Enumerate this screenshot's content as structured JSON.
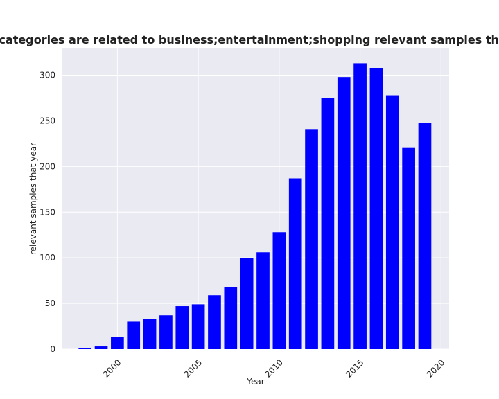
{
  "chart_data": {
    "type": "bar",
    "title": "Number of apps whose categories are related to business;entertainment;shopping relevant samples that year in privacy policies",
    "xlabel": "Year",
    "ylabel": "relevant samples that year",
    "x": [
      1998,
      1999,
      2000,
      2001,
      2002,
      2003,
      2004,
      2005,
      2006,
      2007,
      2008,
      2009,
      2010,
      2011,
      2012,
      2013,
      2014,
      2015,
      2016,
      2017,
      2018,
      2019
    ],
    "values": [
      1,
      3,
      13,
      30,
      33,
      37,
      47,
      49,
      59,
      68,
      100,
      106,
      128,
      187,
      241,
      275,
      298,
      313,
      308,
      278,
      221,
      248
    ],
    "xlim": [
      1996.6,
      2020.5
    ],
    "ylim": [
      0,
      330
    ],
    "xticks": [
      2000,
      2005,
      2010,
      2015,
      2020
    ],
    "yticks": [
      0,
      50,
      100,
      150,
      200,
      250,
      300
    ],
    "bar_color": "#0000ff",
    "plot_background": "#eaeaf2",
    "grid_color": "#ffffff",
    "grid": true
  }
}
